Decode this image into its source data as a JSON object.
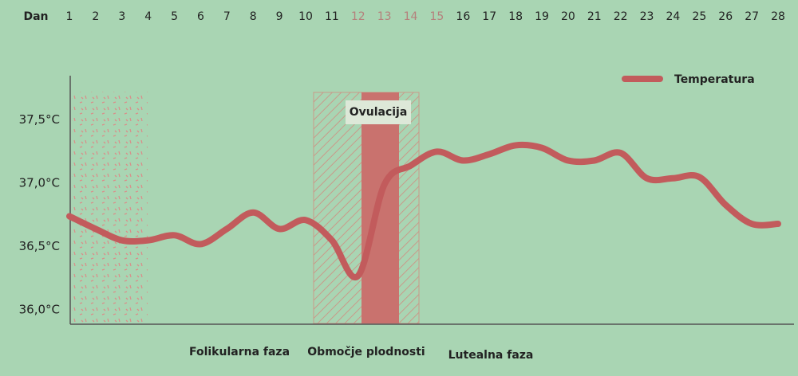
{
  "chart_data": {
    "type": "line",
    "x_label": "Dan",
    "categories": [
      "1",
      "2",
      "3",
      "4",
      "5",
      "6",
      "7",
      "8",
      "9",
      "10",
      "11",
      "12",
      "13",
      "14",
      "15",
      "16",
      "17",
      "18",
      "19",
      "20",
      "21",
      "22",
      "23",
      "24",
      "25",
      "26",
      "27",
      "28"
    ],
    "series": [
      {
        "name": "Temperatura",
        "color": "#c25b5c",
        "values": [
          36.74,
          36.64,
          36.55,
          36.55,
          36.59,
          36.52,
          36.64,
          36.77,
          36.64,
          36.71,
          36.55,
          36.27,
          36.99,
          37.14,
          37.25,
          37.18,
          37.23,
          37.3,
          37.28,
          37.18,
          37.18,
          37.24,
          37.04,
          37.04,
          37.05,
          36.83,
          36.68,
          36.68
        ]
      }
    ],
    "ylim": [
      35.9,
      37.85
    ],
    "yticks": [
      {
        "value": 36.0,
        "label": "36,0°C"
      },
      {
        "value": 36.5,
        "label": "36,5°C"
      },
      {
        "value": 37.0,
        "label": "37,0°C"
      },
      {
        "value": 37.5,
        "label": "37,5°C"
      }
    ],
    "annotations": {
      "ovulation": "Ovulacija",
      "follicular": "Folikularna faza",
      "fertile": "Območje plodnosti",
      "luteal": "Lutealna faza"
    },
    "legend": "top-right"
  }
}
